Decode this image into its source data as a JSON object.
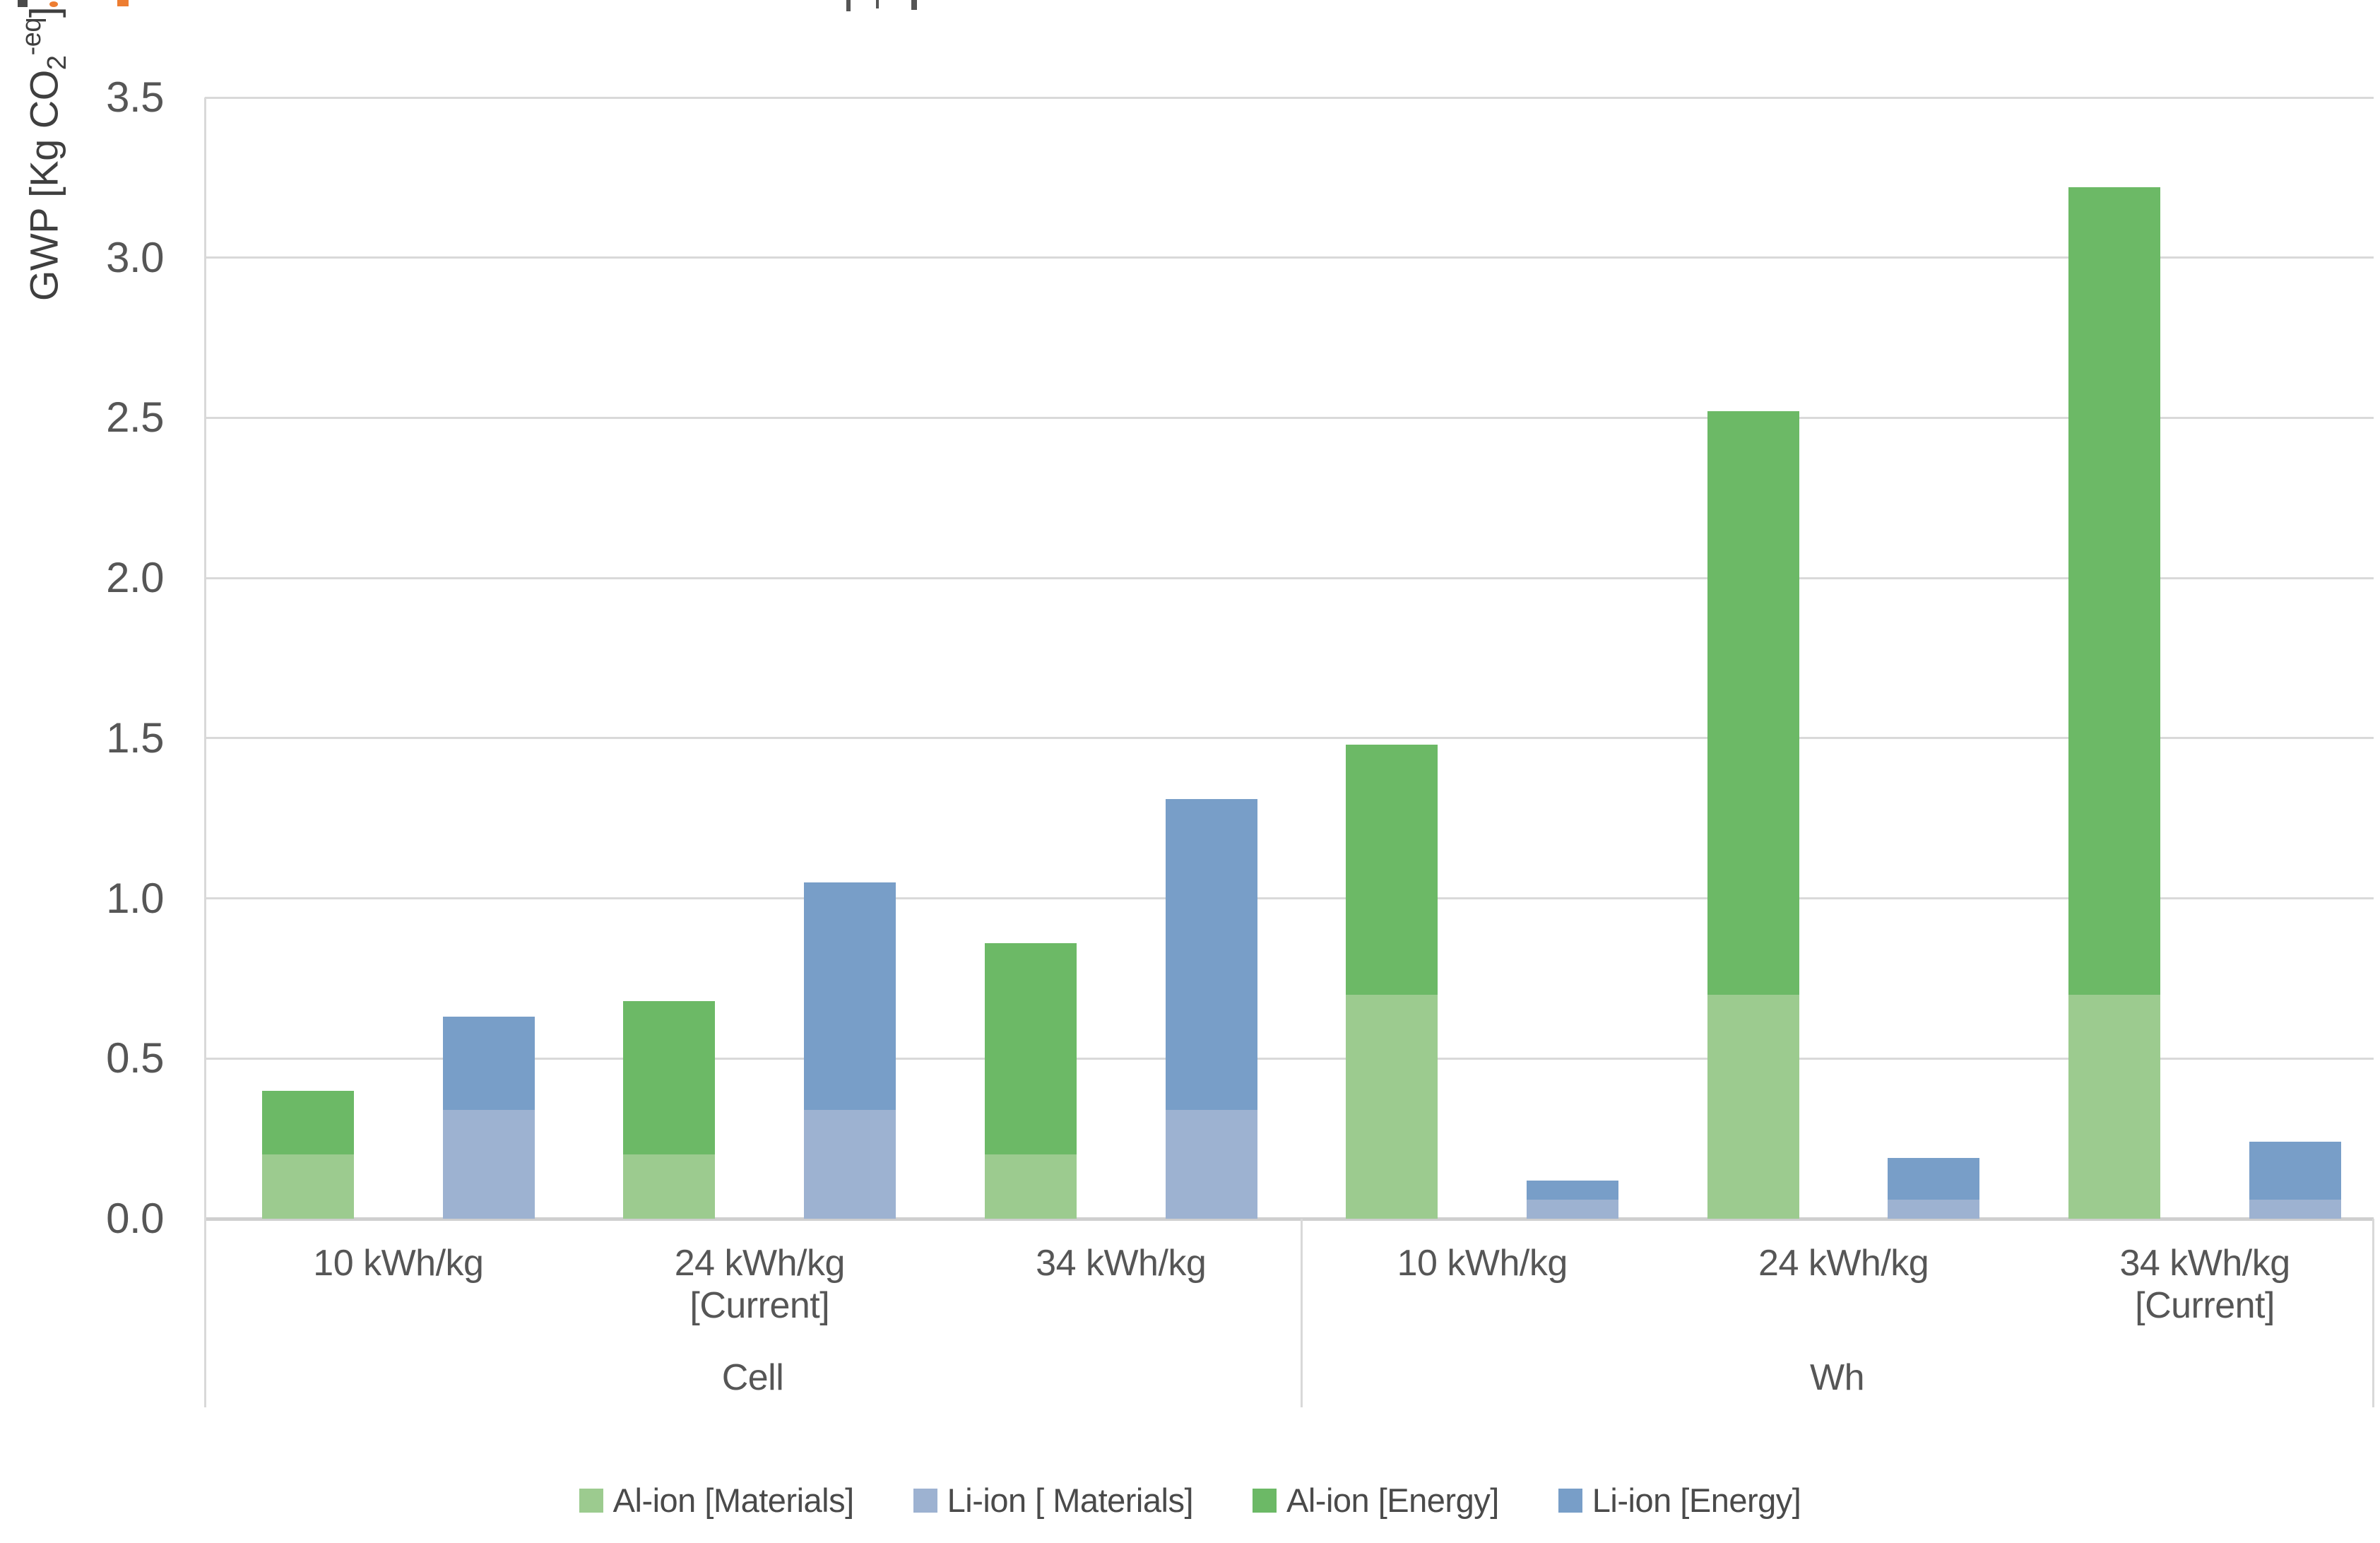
{
  "colors": {
    "background": "#FFFFFF",
    "gridline": "#D9D9D9",
    "axis_line": "#CFCFCF",
    "text": "#565656",
    "al_ion_materials": "#9CCB8F",
    "li_ion_materials": "#9DB2D1",
    "al_ion_energy": "#6CB966",
    "li_ion_energy": "#789EC8"
  },
  "chart_data": {
    "type": "bar",
    "stacked": true,
    "title": "",
    "xlabel": "",
    "ylabel": {
      "prefix": "GWP [Kg CO",
      "sub": "2",
      "sup": "-eq",
      "suffix": "]"
    },
    "ylim": [
      0,
      3.5
    ],
    "ytick_step": 0.5,
    "ytick_labels": [
      "0.0",
      "0.5",
      "1.0",
      "1.5",
      "2.0",
      "2.5",
      "3.0",
      "3.5"
    ],
    "grid": true,
    "legend_position": "bottom",
    "groups": [
      {
        "label": "Cell",
        "categories": [
          {
            "label": "10 kWh/kg",
            "sublabel": ""
          },
          {
            "label": "24 kWh/kg",
            "sublabel": "[Current]"
          },
          {
            "label": "34 kWh/kg",
            "sublabel": ""
          }
        ]
      },
      {
        "label": "Wh",
        "categories": [
          {
            "label": "10 kWh/kg",
            "sublabel": ""
          },
          {
            "label": "24 kWh/kg",
            "sublabel": ""
          },
          {
            "label": "34 kWh/kg",
            "sublabel": "[Current]"
          }
        ]
      }
    ],
    "legend": [
      {
        "label": "Al-ion [Materials]",
        "color": "#9CCB8F"
      },
      {
        "label": "Li-ion [ Materials]",
        "color": "#9DB2D1"
      },
      {
        "label": "Al-ion [Energy]",
        "color": "#6CB966"
      },
      {
        "label": "Li-ion [Energy]",
        "color": "#789EC8"
      }
    ],
    "series_colors": {
      "Al-ion": {
        "materials": "#9CCB8F",
        "energy": "#6CB966"
      },
      "Li-ion": {
        "materials": "#9DB2D1",
        "energy": "#789EC8"
      }
    },
    "bars": [
      {
        "group": "Cell",
        "category": "10 kWh/kg",
        "series": "Al-ion",
        "materials": 0.2,
        "energy": 0.2,
        "total": 0.4
      },
      {
        "group": "Cell",
        "category": "10 kWh/kg",
        "series": "Li-ion",
        "materials": 0.34,
        "energy": 0.29,
        "total": 0.63
      },
      {
        "group": "Cell",
        "category": "24 kWh/kg [Current]",
        "series": "Al-ion",
        "materials": 0.2,
        "energy": 0.48,
        "total": 0.68
      },
      {
        "group": "Cell",
        "category": "24 kWh/kg [Current]",
        "series": "Li-ion",
        "materials": 0.34,
        "energy": 0.71,
        "total": 1.05
      },
      {
        "group": "Cell",
        "category": "34 kWh/kg",
        "series": "Al-ion",
        "materials": 0.2,
        "energy": 0.66,
        "total": 0.86
      },
      {
        "group": "Cell",
        "category": "34 kWh/kg",
        "series": "Li-ion",
        "materials": 0.34,
        "energy": 0.97,
        "total": 1.31
      },
      {
        "group": "Wh",
        "category": "10 kWh/kg",
        "series": "Al-ion",
        "materials": 0.7,
        "energy": 0.78,
        "total": 1.48
      },
      {
        "group": "Wh",
        "category": "10 kWh/kg",
        "series": "Li-ion",
        "materials": 0.06,
        "energy": 0.06,
        "total": 0.12
      },
      {
        "group": "Wh",
        "category": "24 kWh/kg",
        "series": "Al-ion",
        "materials": 0.7,
        "energy": 1.82,
        "total": 2.52
      },
      {
        "group": "Wh",
        "category": "24 kWh/kg",
        "series": "Li-ion",
        "materials": 0.06,
        "energy": 0.13,
        "total": 0.19
      },
      {
        "group": "Wh",
        "category": "34 kWh/kg [Current]",
        "series": "Al-ion",
        "materials": 0.7,
        "energy": 2.52,
        "total": 3.22
      },
      {
        "group": "Wh",
        "category": "34 kWh/kg [Current]",
        "series": "Li-ion",
        "materials": 0.06,
        "energy": 0.18,
        "total": 0.24
      }
    ]
  }
}
